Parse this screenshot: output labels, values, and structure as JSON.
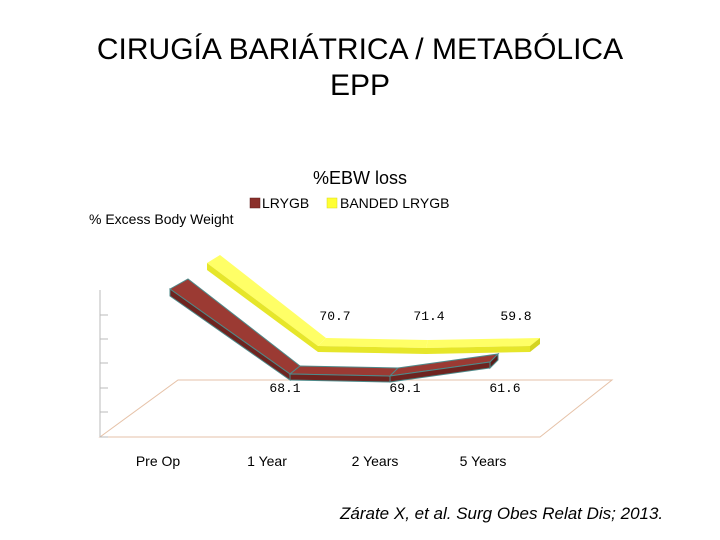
{
  "slide": {
    "title_line1": "CIRUGÍA BARIÁTRICA / METABÓLICA",
    "title_line2": "EPP",
    "citation": "Zárate X, et al. Surg Obes Relat Dis; 2013."
  },
  "chart_data": {
    "type": "line",
    "title": "%EBW loss",
    "ylabel": "% Excess Body Weight",
    "xlabel": "",
    "categories": [
      "Pre Op",
      "1 Year",
      "2 Years",
      "5 Years"
    ],
    "series": [
      {
        "name": "LRYGB",
        "values": [
          null,
          68.1,
          69.1,
          61.6
        ],
        "color": "#8b2f2a"
      },
      {
        "name": "BANDED LRYGB",
        "values": [
          null,
          70.7,
          71.4,
          59.8
        ],
        "color": "#ffff33"
      }
    ],
    "legend_position": "top",
    "grid": false,
    "style": "3d-ribbon"
  }
}
